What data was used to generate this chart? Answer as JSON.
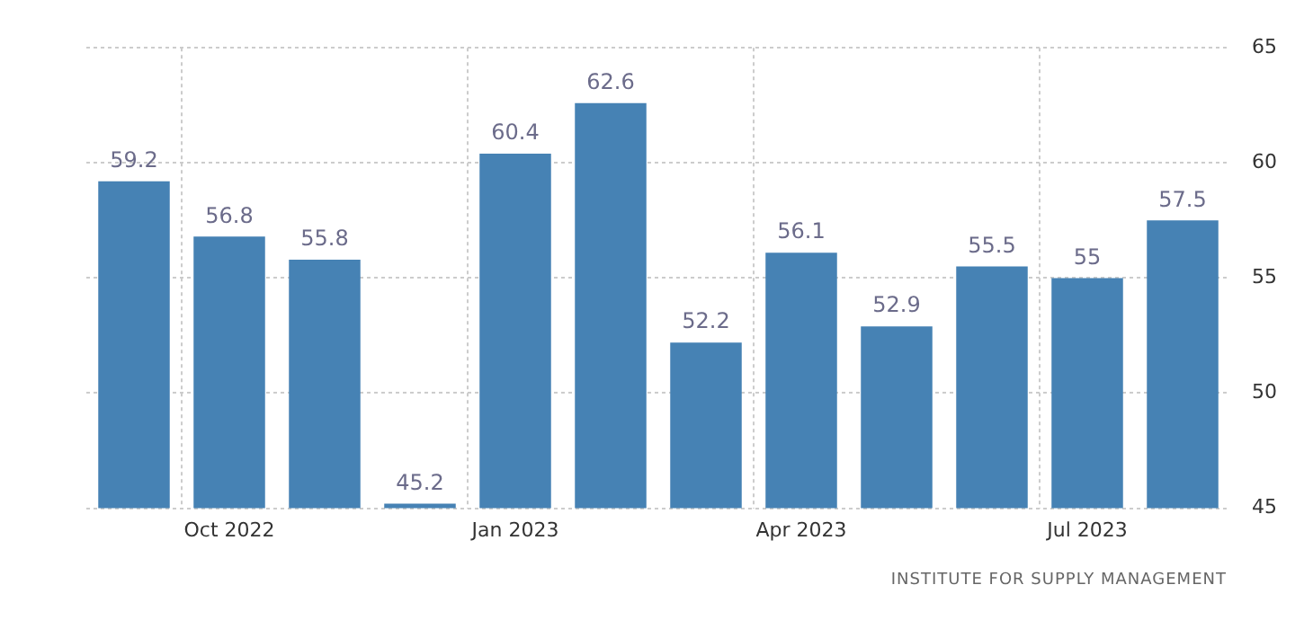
{
  "chart_data": {
    "type": "bar",
    "categories": [
      null,
      "Oct 2022",
      null,
      null,
      "Jan 2023",
      null,
      null,
      "Apr 2023",
      null,
      null,
      "Jul 2023",
      null
    ],
    "values": [
      59.2,
      56.8,
      55.8,
      45.2,
      60.4,
      62.6,
      52.2,
      56.1,
      52.9,
      55.5,
      55,
      57.5
    ],
    "color": "#4682b4",
    "ylim": [
      45,
      65
    ],
    "yticks": [
      45,
      50,
      55,
      60,
      65
    ],
    "grid": true,
    "data_labels": true,
    "annotations": [
      "INSTITUTE FOR SUPPLY MANAGEMENT"
    ]
  }
}
